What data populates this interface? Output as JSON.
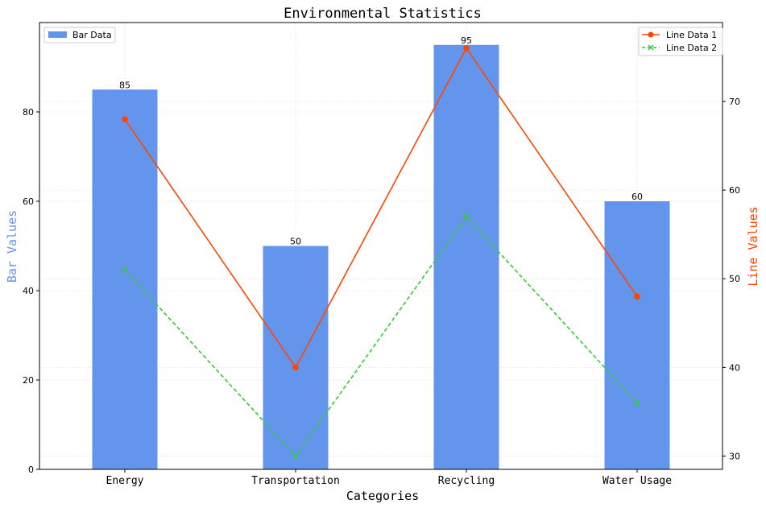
{
  "chart_data": {
    "type": "bar",
    "title": "Environmental Statistics",
    "xlabel": "Categories",
    "ylabel": "Bar Values",
    "y2label": "Line Values",
    "categories": [
      "Energy",
      "Transportation",
      "Recycling",
      "Water Usage"
    ],
    "bar_series": {
      "name": "Bar Data",
      "values": [
        85,
        50,
        95,
        60
      ],
      "color": "#6495ED"
    },
    "line_series": [
      {
        "name": "Line Data 1",
        "values": [
          68,
          40,
          76,
          48
        ],
        "color": "#FF4500",
        "marker": "circle",
        "style": "solid"
      },
      {
        "name": "Line Data 2",
        "values": [
          51,
          30,
          57,
          36
        ],
        "color": "#32CD32",
        "marker": "x",
        "style": "dashed"
      }
    ],
    "ylim": [
      0,
      100
    ],
    "y2lim": [
      28.5,
      78.9
    ],
    "yticks": [
      0,
      20,
      40,
      60,
      80
    ],
    "y2ticks": [
      30,
      40,
      50,
      60,
      70
    ],
    "grid": true,
    "bar_legend_position": "top-left",
    "line_legend_position": "top-right",
    "colors": {
      "ylabel": "#6495ED",
      "y2label": "#FF4500"
    }
  }
}
